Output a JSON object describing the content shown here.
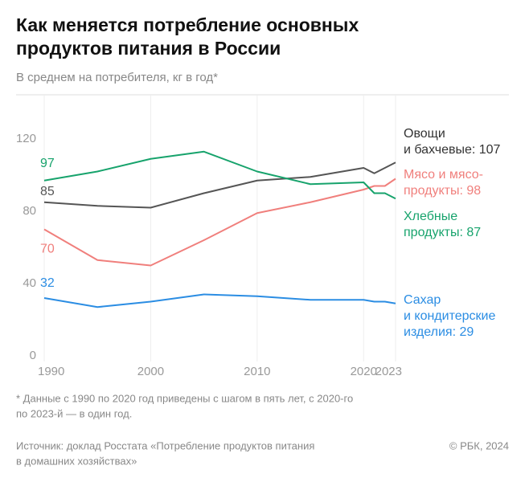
{
  "chart_data": {
    "type": "line",
    "title_lines": [
      "Как меняется потребление основных",
      "продуктов питания в России"
    ],
    "subtitle": "В среднем на потребителя, кг в год*",
    "x": [
      1990,
      1995,
      2000,
      2005,
      2010,
      2015,
      2020,
      2021,
      2022,
      2023
    ],
    "xlim": [
      1990,
      2023
    ],
    "xticks": [
      1990,
      2000,
      2010,
      2020,
      2023
    ],
    "ylim": [
      0,
      140
    ],
    "yticks": [
      0,
      40,
      80,
      120
    ],
    "series": [
      {
        "label_lines": [
          "Овощи",
          "и бахчевые: 107"
        ],
        "color": "#555555",
        "values": [
          85,
          83,
          82,
          90,
          97,
          99,
          104,
          101,
          104,
          107
        ]
      },
      {
        "label_lines": [
          "Мясо и мясо-",
          "продукты: 98"
        ],
        "color": "#f07f7c",
        "values": [
          70,
          53,
          50,
          64,
          79,
          85,
          92,
          94,
          94,
          98
        ]
      },
      {
        "label_lines": [
          "Хлебные",
          "продукты: 87"
        ],
        "color": "#17a36c",
        "values": [
          97,
          102,
          109,
          113,
          102,
          95,
          96,
          90,
          90,
          87
        ]
      },
      {
        "label_lines": [
          "Сахар",
          "и кондитерские",
          "изделия: 29"
        ],
        "color": "#2b8de3",
        "values": [
          32,
          27,
          30,
          34,
          33,
          31,
          31,
          30,
          30,
          29
        ]
      }
    ],
    "footnote_lines": [
      "* Данные с 1990 по 2020 год приведены с шагом в пять лет, с 2020-го",
      "по 2023-й — в один год."
    ],
    "source_lines": [
      "Источник: доклад Росстата «Потребление продуктов питания",
      "в домашних хозяйствах»"
    ],
    "copyright": "© РБК, 2024"
  }
}
